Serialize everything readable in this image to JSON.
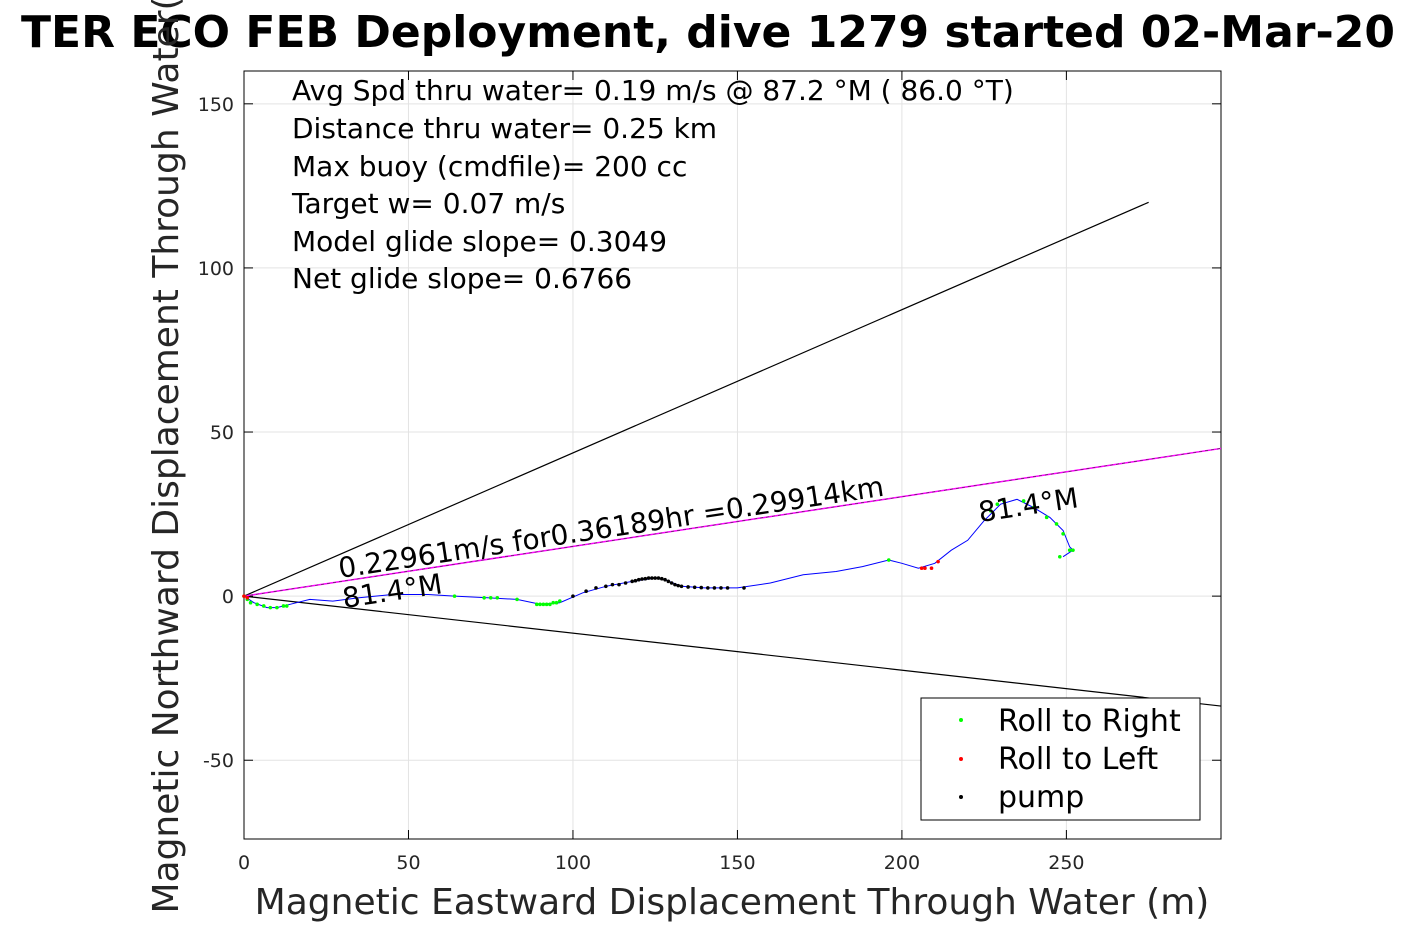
{
  "chart_data": {
    "type": "scatter",
    "title": "TER ECO FEB Deployment, dive 1279 started 02-Mar-20",
    "xlabel": "Magnetic Eastward Displacement Through Water (m)",
    "ylabel": "Magnetic Northward Displacement Through Water(",
    "xlim": [
      0,
      297
    ],
    "ylim": [
      -74,
      160
    ],
    "xticks": [
      0,
      50,
      100,
      150,
      200,
      250
    ],
    "xtick_labels": [
      "0",
      "50",
      "100",
      "150",
      "200",
      "250"
    ],
    "yticks": [
      -50,
      0,
      50,
      100,
      150
    ],
    "ytick_labels": [
      "-50",
      "0",
      "50",
      "100",
      "150"
    ],
    "grid": true,
    "annotations": {
      "lines": [
        "Avg Spd thru water=  0.19 m/s @  87.2 °M ( 86.0 °T)",
        "Distance thru water=  0.25 km",
        "Max buoy (cmdfile)= 200 cc",
        "Target w= 0.07 m/s",
        "Model glide slope= 0.3049",
        "Net glide slope= 0.6766"
      ],
      "current_label": "0.22961m/s for0.36189hr =0.29914km",
      "heading_start": "81.4°M",
      "heading_end": "81.4°M"
    },
    "legend": {
      "placement": "bottom-right",
      "entries": [
        {
          "label": "Roll to Right",
          "color": "#00ff00"
        },
        {
          "label": "Roll to Left",
          "color": "#ff0000"
        },
        {
          "label": "pump",
          "color": "#000000"
        }
      ]
    },
    "colors": {
      "track": "#0000ff",
      "current": "#ff00ff",
      "envelope": "#000000"
    },
    "envelope_lines": [
      {
        "x": [
          0,
          275
        ],
        "y": [
          0,
          120
        ]
      },
      {
        "x": [
          0,
          297
        ],
        "y": [
          0,
          -33.5
        ]
      }
    ],
    "current_line": {
      "x": [
        0,
        297
      ],
      "y": [
        0,
        45
      ]
    },
    "track": {
      "x": [
        0,
        3,
        7,
        10,
        14,
        20,
        27,
        35,
        45,
        56,
        64,
        74,
        83,
        90,
        96,
        103,
        110,
        118,
        125,
        128,
        133,
        140,
        150,
        160,
        170,
        180,
        188,
        196,
        200,
        205,
        210,
        215,
        220,
        225,
        230,
        235,
        240,
        245,
        249,
        251,
        252,
        249
      ],
      "y": [
        0,
        -2,
        -3.5,
        -3.5,
        -2.5,
        -1,
        -1.5,
        -0.5,
        0.5,
        0.5,
        0,
        -0.5,
        -1,
        -2.5,
        -2,
        1,
        3,
        4.5,
        5.5,
        5,
        3,
        2.5,
        2.5,
        4,
        6.5,
        7.5,
        9,
        11,
        10,
        8.5,
        10,
        14,
        17,
        23,
        28,
        29.5,
        27,
        24,
        20,
        15,
        14,
        12
      ]
    },
    "roll_right": {
      "x": [
        0,
        1,
        2,
        4,
        6,
        8,
        10,
        12,
        13,
        64,
        73,
        75,
        77,
        83,
        89,
        90,
        91,
        92,
        93,
        94,
        95,
        96,
        196,
        227,
        229,
        231,
        237,
        240,
        244,
        247,
        249,
        251,
        252,
        248
      ],
      "y": [
        0,
        -1,
        -2,
        -2.5,
        -3,
        -3.5,
        -3.5,
        -3,
        -3,
        0,
        -0.5,
        -0.5,
        -0.5,
        -1,
        -2.5,
        -2.5,
        -2.5,
        -2.5,
        -2.5,
        -2,
        -2,
        -1.5,
        11,
        26,
        28,
        29,
        29,
        27,
        24,
        22,
        19,
        14,
        14,
        12
      ]
    },
    "roll_left": {
      "x": [
        0,
        1,
        206,
        207,
        209,
        211
      ],
      "y": [
        0,
        -0.5,
        8.5,
        8.5,
        8.5,
        10.5
      ]
    },
    "pump": {
      "x": [
        100,
        104,
        107,
        110,
        112,
        114,
        116,
        118,
        119,
        120,
        121,
        122,
        123,
        124,
        125,
        126,
        127,
        128,
        129,
        130,
        131,
        132,
        133,
        135,
        137,
        139,
        141,
        143,
        145,
        147,
        152
      ],
      "y": [
        0,
        1.5,
        2.5,
        3,
        3.5,
        3.5,
        4,
        4.5,
        4.7,
        5,
        5.2,
        5.3,
        5.5,
        5.5,
        5.5,
        5.5,
        5.3,
        5,
        4.5,
        4,
        3.5,
        3.2,
        3,
        2.8,
        2.7,
        2.6,
        2.5,
        2.5,
        2.5,
        2.5,
        2.5
      ]
    }
  }
}
